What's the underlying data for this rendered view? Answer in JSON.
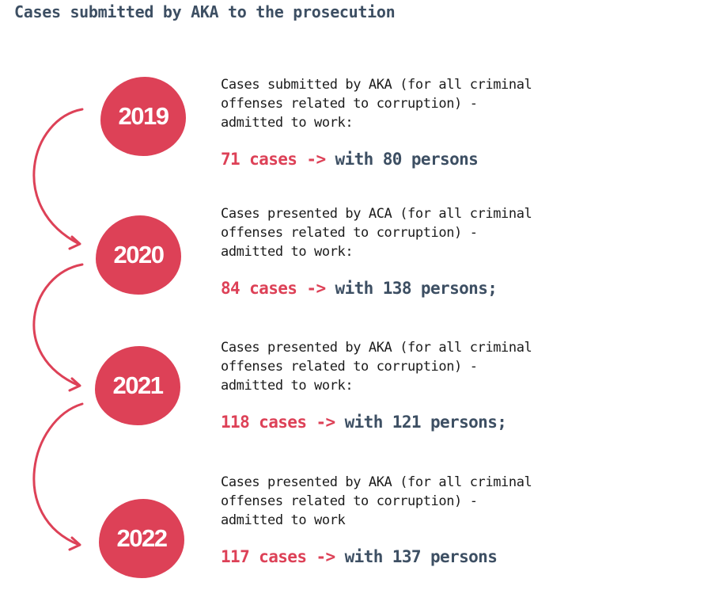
{
  "title": "Cases submitted by AKA to the prosecution",
  "colors": {
    "accent": "#dd4157",
    "dark": "#3d4f63"
  },
  "entries": [
    {
      "year": "2019",
      "description": "Cases submitted by AKA (for all criminal\noffenses related to corruption) -\nadmitted to work:",
      "cases": "71 cases",
      "arrow": "->",
      "persons": "with 80 persons"
    },
    {
      "year": "2020",
      "description": "Cases presented by ACA (for all criminal\noffenses related to corruption) -\nadmitted to work:",
      "cases": "84 cases",
      "arrow": "->",
      "persons": "with 138 persons;"
    },
    {
      "year": "2021",
      "description": "Cases presented by AKA (for all criminal\noffenses related to corruption) -\nadmitted to work:",
      "cases": "118 cases",
      "arrow": "->",
      "persons": "with 121 persons;"
    },
    {
      "year": "2022",
      "description": "Cases presented by AKA (for all criminal\noffenses related to corruption) -\nadmitted to work",
      "cases": "117 cases",
      "arrow": "->",
      "persons": "with 137 persons"
    }
  ]
}
